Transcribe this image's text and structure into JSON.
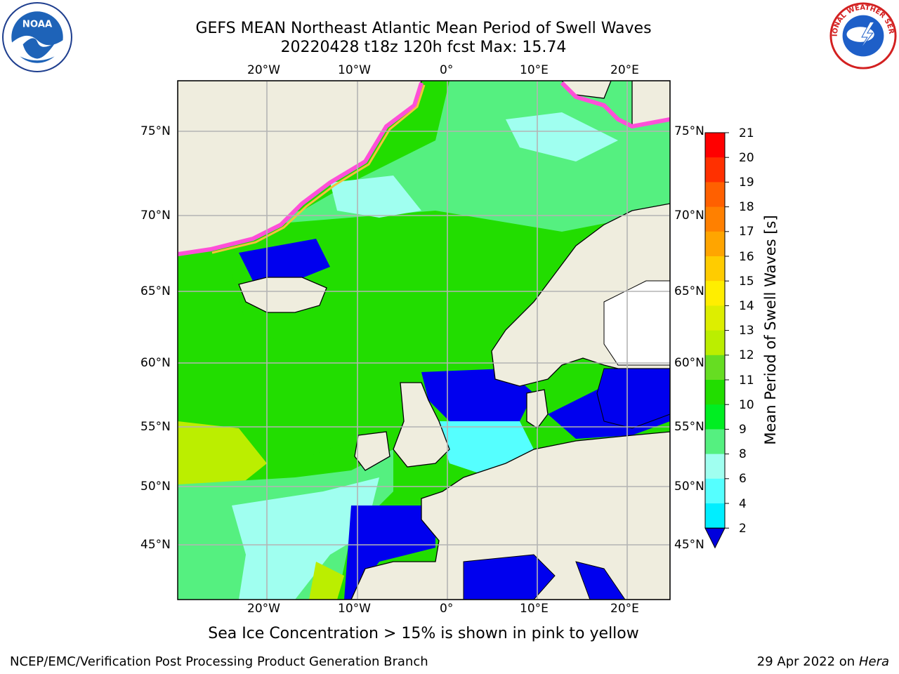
{
  "title": {
    "line1": "GEFS MEAN Northeast Atlantic Mean Period of Swell Waves",
    "line2": "20220428 t18z 120h fcst   Max: 15.74"
  },
  "map": {
    "lon_labels": [
      "20°W",
      "10°W",
      "0°",
      "10°E",
      "20°E"
    ],
    "lat_labels": [
      "75°N",
      "70°N",
      "65°N",
      "60°N",
      "55°N",
      "50°N",
      "45°N"
    ],
    "colors": {
      "land": "#efedde",
      "ice_pink": "#ff4fd8",
      "ice_yellow": "#f5c23b",
      "grid": "#b4b4b4"
    }
  },
  "colorbar": {
    "label": "Mean Period of Swell Waves [s]",
    "ticks": [
      "21",
      "20",
      "19",
      "18",
      "17",
      "16",
      "15",
      "14",
      "13",
      "12",
      "11",
      "10",
      "9",
      "8",
      "6",
      "4",
      "2"
    ],
    "colors": [
      "#ff0000",
      "#ff3000",
      "#ff6000",
      "#ff8000",
      "#ffa500",
      "#ffcc00",
      "#ffee00",
      "#ddee00",
      "#bbee00",
      "#66dd22",
      "#22dd00",
      "#00ee22",
      "#55f080",
      "#a0fff0",
      "#55ffff",
      "#00eeff",
      "#0066ff"
    ],
    "extend_color": "#0000dd"
  },
  "caption": "Sea Ice Concentration > 15% is shown in pink to yellow",
  "footer": {
    "left": "NCEP/EMC/Verification Post Processing Product Generation Branch",
    "right_prefix": "29 Apr 2022 on ",
    "right_host": "Hera"
  },
  "logos": {
    "noaa_icon": "noaa-logo",
    "nws_icon": "nws-logo"
  }
}
